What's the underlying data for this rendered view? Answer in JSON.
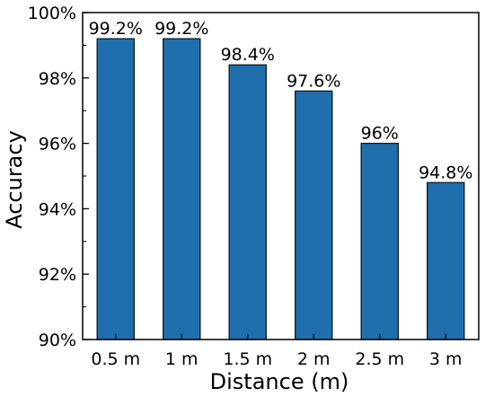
{
  "chart_data": {
    "type": "bar",
    "title": "",
    "xlabel": "Distance (m)",
    "ylabel": "Accuracy",
    "categories": [
      "0.5 m",
      "1 m",
      "1.5 m",
      "2 m",
      "2.5 m",
      "3 m"
    ],
    "values": [
      99.2,
      99.2,
      98.4,
      97.6,
      96.0,
      94.8
    ],
    "data_labels": [
      "99.2%",
      "99.2%",
      "98.4%",
      "97.6%",
      "96%",
      "94.8%"
    ],
    "ylim": [
      90,
      100
    ],
    "yticks": [
      90,
      92,
      94,
      96,
      98,
      100
    ],
    "ytick_labels": [
      "90%",
      "92%",
      "94%",
      "96%",
      "98%",
      "100%"
    ],
    "grid": false,
    "legend": "none",
    "colors": {
      "bar_fill": "#1f6fad",
      "bar_edge": "#0d1b2a",
      "axis": "#000000"
    }
  }
}
